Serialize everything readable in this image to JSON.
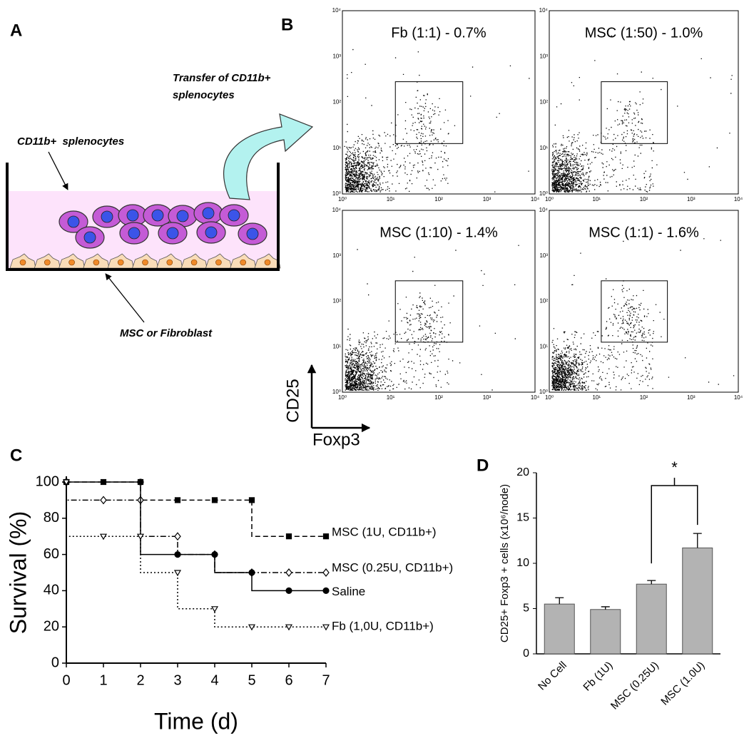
{
  "panel_a": {
    "label": "A",
    "transfer_line1": "Transfer of CD11b+",
    "transfer_line2": "splenocytes",
    "cells_label": "CD11b+  splenocytes",
    "layer_label": "MSC or Fibroblast"
  },
  "panel_b": {
    "label": "B",
    "plots": [
      {
        "title": "Fb (1:1) - 0.7%"
      },
      {
        "title": "MSC (1:50) - 1.0%"
      },
      {
        "title": "MSC (1:10) - 1.4%"
      },
      {
        "title": "MSC (1:1) - 1.6%"
      }
    ],
    "ticks": [
      {
        "value": 1,
        "label": "10⁰"
      },
      {
        "value": 10,
        "label": "10¹"
      },
      {
        "value": 100,
        "label": "10²"
      },
      {
        "value": 1000,
        "label": "10³"
      },
      {
        "value": 10000,
        "label": "10⁴"
      }
    ],
    "y_axis_label": "CD25",
    "x_axis_label": "Foxp3"
  },
  "chart_data": [
    {
      "type": "line",
      "panel_label": "C",
      "x_label": "Time (d)",
      "y_label": "Survival (%)",
      "xlim": [
        0,
        7
      ],
      "ylim": [
        0,
        100
      ],
      "xticks": [
        0,
        1,
        2,
        3,
        4,
        5,
        6,
        7
      ],
      "yticks": [
        0,
        20,
        40,
        60,
        80,
        100
      ],
      "series": [
        {
          "name": "MSC (1U, CD11b+)",
          "color": "#000000",
          "line_style": "dashed",
          "marker": "square",
          "filled": true,
          "x": [
            0,
            1,
            2,
            3,
            4,
            5,
            6,
            7
          ],
          "values": [
            100,
            100,
            100,
            90,
            90,
            90,
            70,
            70
          ]
        },
        {
          "name": "MSC (0.25U, CD11b+)",
          "color": "#000000",
          "line_style": "dashdot",
          "marker": "diamond",
          "filled": false,
          "x": [
            0,
            1,
            2,
            3,
            4,
            5,
            6,
            7
          ],
          "values": [
            100,
            90,
            90,
            70,
            60,
            50,
            50,
            50
          ]
        },
        {
          "name": "Saline",
          "color": "#000000",
          "line_style": "solid",
          "marker": "circle",
          "filled": true,
          "x": [
            0,
            2,
            3,
            4,
            5,
            6,
            7
          ],
          "values": [
            100,
            100,
            60,
            60,
            50,
            40,
            40
          ]
        },
        {
          "name": "Fb (1,0U, CD11b+)",
          "color": "#000000",
          "line_style": "dotted",
          "marker": "triangle-down",
          "filled": false,
          "x": [
            0,
            1,
            2,
            3,
            4,
            5,
            6,
            7
          ],
          "values": [
            100,
            70,
            70,
            50,
            30,
            20,
            20,
            20
          ]
        }
      ]
    },
    {
      "type": "bar",
      "panel_label": "D",
      "y_label": "CD25+ Foxp3 + cells (x10⁶/node)",
      "categories": [
        "No Cell",
        "Fb (1U)",
        "MSC (0.25U)",
        "MSC (1.0U)"
      ],
      "values": [
        5.5,
        4.9,
        7.7,
        11.7
      ],
      "errors": [
        0.7,
        0.3,
        0.4,
        1.6
      ],
      "color": "#b3b3b3",
      "ylim": [
        0,
        20
      ],
      "yticks": [
        0,
        5,
        10,
        15,
        20
      ],
      "annotation": "*"
    }
  ]
}
